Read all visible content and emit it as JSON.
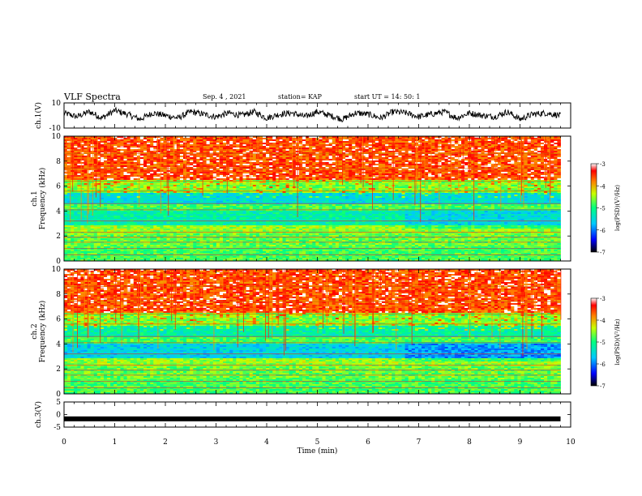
{
  "header": {
    "title": "VLF Spectra",
    "date": "Sep. 4 , 2021",
    "station": "station= KAP",
    "start": "start UT =  14: 50: 1"
  },
  "chart_data": [
    {
      "type": "line",
      "name": "ch1-waveform",
      "ylabel": "ch.1(V)",
      "ylim": [
        -10,
        10
      ],
      "xlim": [
        0,
        10
      ],
      "yticks": [
        "10",
        "-10"
      ],
      "x": [
        0,
        0.25,
        0.5,
        0.75,
        1.0,
        1.25,
        1.5,
        1.75,
        2.0,
        2.25,
        2.5,
        2.75,
        3.0,
        3.25,
        3.5,
        3.75,
        4.0,
        4.25,
        4.5,
        4.75,
        5.0,
        5.25,
        5.5,
        5.75,
        6.0,
        6.25,
        6.5,
        6.75,
        7.0,
        7.25,
        7.5,
        7.75,
        8.0,
        8.25,
        8.5,
        8.75,
        9.0,
        9.25,
        9.5,
        9.8
      ],
      "values": [
        2,
        -1,
        3,
        -2,
        4,
        1,
        -3,
        2,
        0,
        -2,
        3,
        1,
        -1,
        2,
        0,
        3,
        -2,
        1,
        2,
        -1,
        3,
        0,
        -3,
        2,
        1,
        -2,
        3,
        2,
        -1,
        1,
        3,
        -2,
        2,
        0,
        -1,
        3,
        -3,
        1,
        2,
        0
      ]
    },
    {
      "type": "heatmap",
      "name": "ch1-spectrogram",
      "ylabel": "ch.1 Frequency (kHz)",
      "ylim": [
        0,
        10
      ],
      "xlim": [
        0,
        10
      ],
      "yticks": [
        "0",
        "2",
        "4",
        "6",
        "8",
        "10"
      ],
      "colorbar": {
        "label": "log(PSD)(V²/Hz)",
        "range": [
          -7,
          -3
        ],
        "ticks": [
          "-3",
          "-4",
          "-5",
          "-6",
          "-7"
        ]
      }
    },
    {
      "type": "heatmap",
      "name": "ch2-spectrogram",
      "ylabel": "ch.2 Frequency (kHz)",
      "ylim": [
        0,
        10
      ],
      "xlim": [
        0,
        10
      ],
      "yticks": [
        "0",
        "2",
        "4",
        "6",
        "8",
        "10"
      ],
      "colorbar": {
        "label": "log(PSD)(V²/Hz)",
        "range": [
          -7,
          -3
        ],
        "ticks": [
          "-3",
          "-4",
          "-5",
          "-6",
          "-7"
        ]
      }
    },
    {
      "type": "line",
      "name": "ch3-waveform",
      "ylabel": "ch.3(V)",
      "ylim": [
        -5,
        5
      ],
      "xlim": [
        0,
        10
      ],
      "yticks": [
        "5",
        "0",
        "-5"
      ],
      "x": [
        0,
        9.8
      ],
      "values": [
        -1.7,
        -1.7
      ]
    }
  ],
  "xaxis": {
    "label": "Time (min)",
    "ticks": [
      "0",
      "1",
      "2",
      "3",
      "4",
      "5",
      "6",
      "7",
      "8",
      "9",
      "10"
    ]
  },
  "colors": {
    "wave": "#000000",
    "cmap_stops": [
      "#000000",
      "#0000ff",
      "#00c8ff",
      "#00ff80",
      "#c8ff00",
      "#ff8000",
      "#ff0000",
      "#ffffff"
    ]
  }
}
